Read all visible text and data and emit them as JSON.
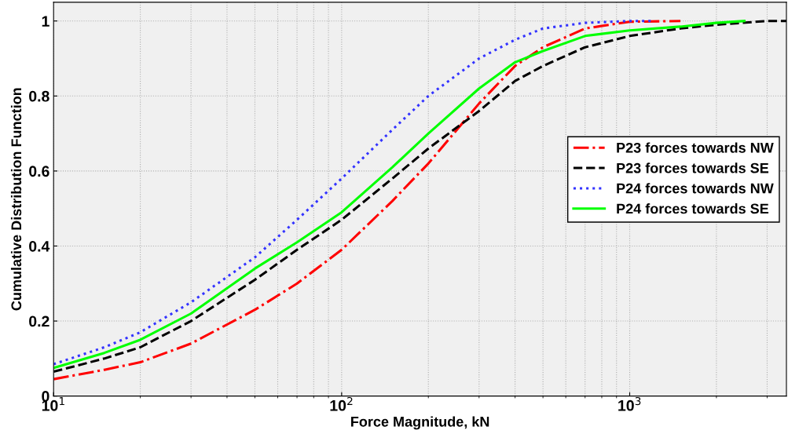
{
  "chart_data": {
    "type": "line",
    "xlabel": "Force Magnitude, kN",
    "ylabel": "Cumulative Distribution Function",
    "log": "x",
    "xlim": [
      10,
      3500
    ],
    "ylim": [
      0,
      1.05
    ],
    "xticks": [
      {
        "value": 10,
        "label": "10$^{1}$"
      },
      {
        "value": 100,
        "label": "10$^{2}$"
      },
      {
        "value": 1000,
        "label": "10$^{3}$"
      }
    ],
    "yticks": [
      0,
      {
        "value": 0.2,
        "label": "0.2"
      },
      {
        "value": 0.4,
        "label": "0.4"
      },
      {
        "value": 0.6,
        "label": "0.6"
      },
      {
        "value": 0.8,
        "label": "0.8"
      },
      1
    ],
    "grid": true,
    "legend": "right",
    "series": [
      {
        "name": "P23 forces towards NW",
        "color": "#ff0000",
        "line_style": "dashdot",
        "x": [
          10,
          15,
          20,
          30,
          50,
          70,
          100,
          150,
          200,
          300,
          400,
          500,
          700,
          1000,
          1500
        ],
        "values": [
          0.045,
          0.07,
          0.09,
          0.14,
          0.23,
          0.3,
          0.39,
          0.52,
          0.62,
          0.78,
          0.88,
          0.93,
          0.98,
          0.998,
          1.0
        ]
      },
      {
        "name": "P23 forces towards SE",
        "color": "#000000",
        "line_style": "dashed",
        "x": [
          10,
          15,
          20,
          30,
          50,
          70,
          100,
          150,
          200,
          300,
          400,
          500,
          700,
          1000,
          1500,
          2000,
          3000,
          3500
        ],
        "values": [
          0.065,
          0.1,
          0.13,
          0.2,
          0.31,
          0.39,
          0.47,
          0.58,
          0.66,
          0.76,
          0.84,
          0.88,
          0.93,
          0.96,
          0.98,
          0.99,
          1.0,
          1.0
        ]
      },
      {
        "name": "P24 forces towards NW",
        "color": "#3333ff",
        "line_style": "dotted",
        "x": [
          10,
          15,
          20,
          30,
          50,
          70,
          100,
          150,
          200,
          300,
          400,
          500,
          700,
          1000,
          1200
        ],
        "values": [
          0.085,
          0.13,
          0.17,
          0.25,
          0.37,
          0.47,
          0.58,
          0.71,
          0.8,
          0.9,
          0.95,
          0.98,
          0.995,
          1.0,
          1.0
        ]
      },
      {
        "name": "P24 forces towards SE",
        "color": "#00ff00",
        "line_style": "solid",
        "x": [
          10,
          15,
          20,
          30,
          50,
          70,
          100,
          150,
          200,
          300,
          400,
          500,
          700,
          1000,
          1500,
          2000,
          2500
        ],
        "values": [
          0.075,
          0.115,
          0.15,
          0.22,
          0.34,
          0.41,
          0.49,
          0.61,
          0.7,
          0.82,
          0.89,
          0.92,
          0.96,
          0.975,
          0.985,
          0.995,
          1.0
        ]
      }
    ]
  }
}
